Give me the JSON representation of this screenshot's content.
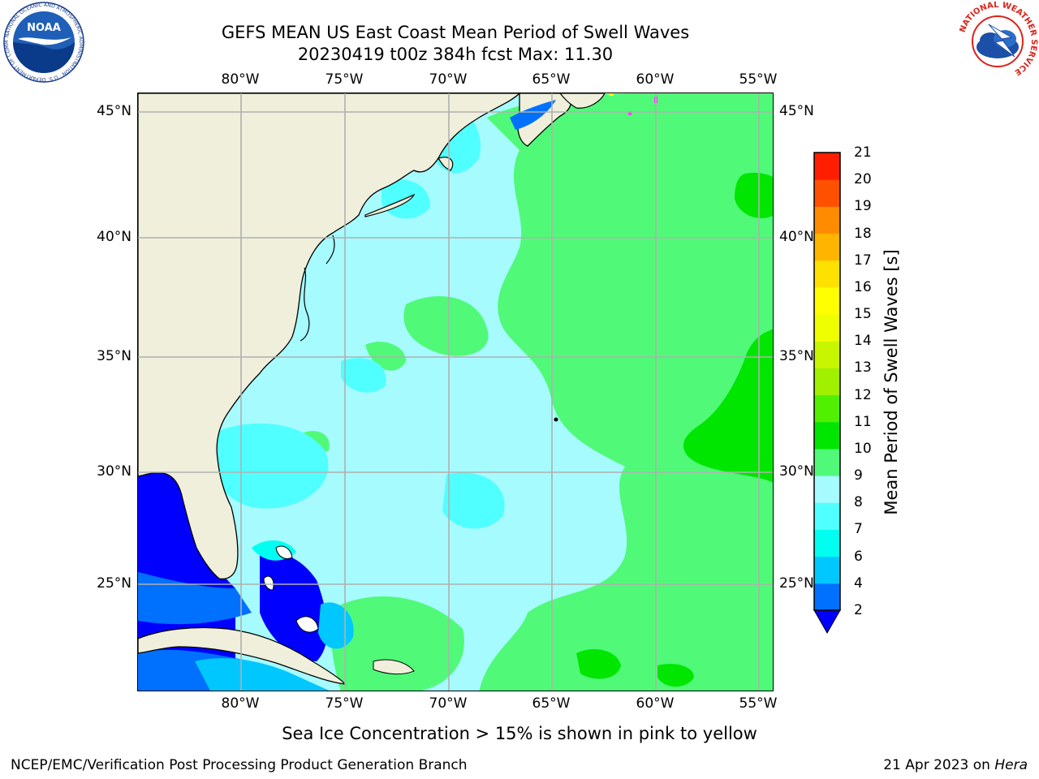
{
  "header": {
    "title_line1": "GEFS MEAN US East Coast Mean Period of Swell Waves",
    "title_line2": "20230419 t00z 384h fcst   Max: 11.30"
  },
  "logos": {
    "left": "noaa-logo",
    "left_text": "NOAA",
    "left_ring_text": "NATIONAL OCEANIC AND ATMOSPHERIC ADMINISTRATION · U.S. DEPARTMENT OF COMMERCE",
    "right": "national-weather-service-logo",
    "right_ring_text": "NATIONAL WEATHER SERVICE"
  },
  "map": {
    "longitude_labels": [
      "80°W",
      "75°W",
      "70°W",
      "65°W",
      "60°W",
      "55°W"
    ],
    "latitude_labels_left": [
      "45°N",
      "40°N",
      "35°N",
      "30°N",
      "25°N"
    ],
    "latitude_labels_right": [
      "45°N",
      "40°N",
      "35°N",
      "30°N",
      "25°N"
    ],
    "lon_range": [
      -85,
      -54.3
    ],
    "lat_range": [
      20.4,
      46
    ],
    "land_color": "#efefdc",
    "grid_color": "#b0b0b0"
  },
  "colorbar": {
    "title": "Mean Period of Swell Waves [s]",
    "tick_labels": [
      "2",
      "4",
      "6",
      "7",
      "8",
      "9",
      "10",
      "11",
      "12",
      "13",
      "14",
      "15",
      "16",
      "17",
      "18",
      "19",
      "20",
      "21"
    ],
    "colors": [
      "#0070ff",
      "#00c8ff",
      "#00fff0",
      "#50ffff",
      "#a6fbff",
      "#50fa78",
      "#00e600",
      "#50f000",
      "#a0f000",
      "#c8f500",
      "#f0ff00",
      "#ffff00",
      "#ffe100",
      "#ffb400",
      "#ff8c00",
      "#ff5000",
      "#ff1e00"
    ],
    "extend_below_color": "#0000ff"
  },
  "subtitle": "Sea Ice Concentration > 15% is shown in pink to yellow",
  "footer": {
    "left": "NCEP/EMC/Verification Post Processing Product Generation Branch",
    "right_date": "21 Apr 2023 on",
    "right_machine": "Hera"
  }
}
